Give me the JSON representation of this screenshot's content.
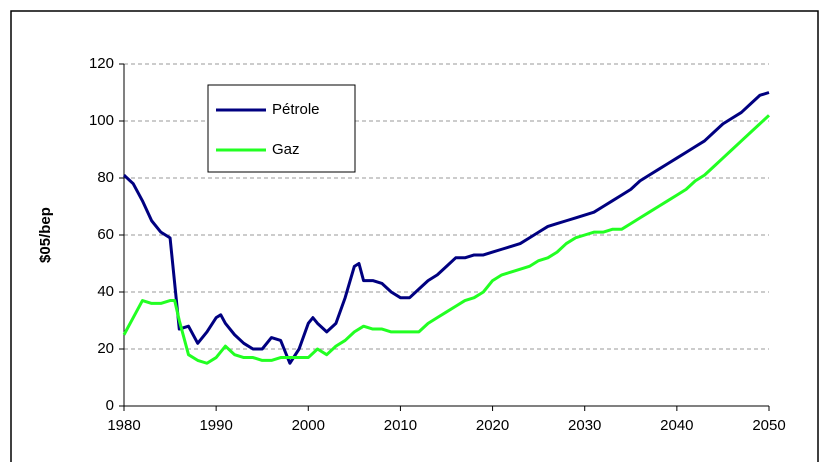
{
  "chart_data": {
    "type": "line",
    "ylabel": "$05/bep",
    "xlim": [
      1980,
      2050
    ],
    "xticks": [
      1980,
      1990,
      2000,
      2010,
      2020,
      2030,
      2040,
      2050
    ],
    "ylim": [
      0,
      120
    ],
    "yticks": [
      0,
      20,
      40,
      60,
      80,
      100,
      120
    ],
    "grid": true,
    "legend": "upper left",
    "series": [
      {
        "name": "Pétrole",
        "color": "#000080",
        "x": [
          1980,
          1981,
          1982,
          1983,
          1984,
          1985,
          1986,
          1987,
          1988,
          1989,
          1990,
          1990.5,
          1991,
          1992,
          1993,
          1994,
          1995,
          1996,
          1997,
          1998,
          1999,
          2000,
          2000.5,
          2001,
          2002,
          2003,
          2004,
          2005,
          2005.5,
          2006,
          2007,
          2008,
          2009,
          2010,
          2011,
          2012,
          2013,
          2014,
          2015,
          2016,
          2017,
          2018,
          2019,
          2020,
          2021,
          2022,
          2023,
          2024,
          2025,
          2026,
          2027,
          2028,
          2029,
          2030,
          2031,
          2032,
          2033,
          2034,
          2035,
          2036,
          2037,
          2038,
          2039,
          2040,
          2041,
          2042,
          2043,
          2044,
          2045,
          2046,
          2047,
          2048,
          2049,
          2050
        ],
        "values": [
          81,
          78,
          72,
          65,
          61,
          59,
          27,
          28,
          22,
          26,
          31,
          32,
          29,
          25,
          22,
          20,
          20,
          24,
          23,
          15,
          20,
          29,
          31,
          29,
          26,
          29,
          38,
          49,
          50,
          44,
          44,
          43,
          40,
          38,
          38,
          41,
          44,
          46,
          49,
          52,
          52,
          53,
          53,
          54,
          55,
          56,
          57,
          59,
          61,
          63,
          64,
          65,
          66,
          67,
          68,
          70,
          72,
          74,
          76,
          79,
          81,
          83,
          85,
          87,
          89,
          91,
          93,
          96,
          99,
          101,
          103,
          106,
          109,
          110
        ]
      },
      {
        "name": "Gaz",
        "color": "#22ff22",
        "x": [
          1980,
          1981,
          1982,
          1983,
          1984,
          1985,
          1985.5,
          1986,
          1987,
          1988,
          1989,
          1990,
          1991,
          1992,
          1993,
          1994,
          1995,
          1996,
          1997,
          1998,
          1999,
          2000,
          2001,
          2002,
          2003,
          2004,
          2005,
          2006,
          2007,
          2008,
          2009,
          2010,
          2011,
          2012,
          2013,
          2014,
          2015,
          2016,
          2017,
          2018,
          2019,
          2020,
          2021,
          2022,
          2023,
          2024,
          2025,
          2026,
          2027,
          2028,
          2029,
          2030,
          2031,
          2032,
          2033,
          2034,
          2035,
          2036,
          2037,
          2038,
          2039,
          2040,
          2041,
          2042,
          2043,
          2044,
          2045,
          2046,
          2047,
          2048,
          2049,
          2050
        ],
        "values": [
          25,
          31,
          37,
          36,
          36,
          37,
          37,
          30,
          18,
          16,
          15,
          17,
          21,
          18,
          17,
          17,
          16,
          16,
          17,
          17,
          17,
          17,
          20,
          18,
          21,
          23,
          26,
          28,
          27,
          27,
          26,
          26,
          26,
          26,
          29,
          31,
          33,
          35,
          37,
          38,
          40,
          44,
          46,
          47,
          48,
          49,
          51,
          52,
          54,
          57,
          59,
          60,
          61,
          61,
          62,
          62,
          64,
          66,
          68,
          70,
          72,
          74,
          76,
          79,
          81,
          84,
          87,
          90,
          93,
          96,
          99,
          102
        ]
      }
    ]
  }
}
